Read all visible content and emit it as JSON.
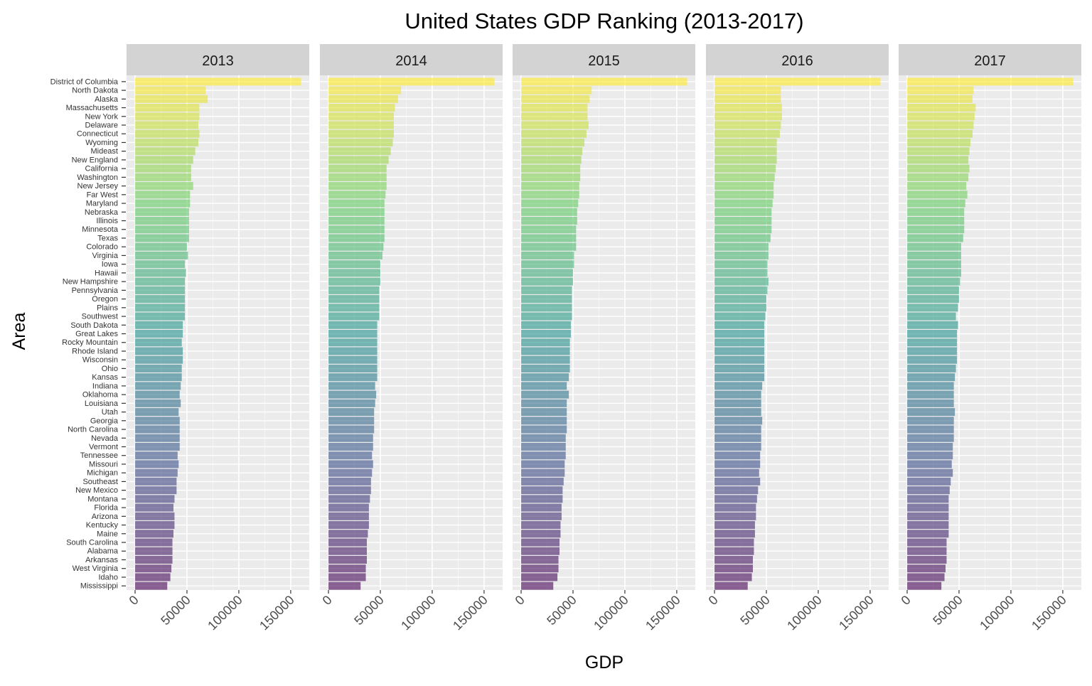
{
  "chart_data": {
    "type": "bar",
    "orientation": "horizontal",
    "title": "United States GDP Ranking (2013-2017)",
    "xlabel": "GDP",
    "ylabel": "Area",
    "xlim": [
      0,
      165000
    ],
    "x_ticks": [
      0,
      50000,
      100000,
      150000
    ],
    "x_tick_labels": [
      "0",
      "50000",
      "100000",
      "150000"
    ],
    "grid": true,
    "legend": "none",
    "color_scale": [
      "#fde725",
      "#5ec962",
      "#21918c",
      "#3b528b",
      "#440154"
    ],
    "facets": [
      "2013",
      "2014",
      "2015",
      "2016",
      "2017"
    ],
    "categories": [
      "District of Columbia",
      "North Dakota",
      "Alaska",
      "Massachusetts",
      "New York",
      "Delaware",
      "Connecticut",
      "Wyoming",
      "Mideast",
      "New England",
      "California",
      "Washington",
      "New Jersey",
      "Far West",
      "Maryland",
      "Nebraska",
      "Illinois",
      "Minnesota",
      "Texas",
      "Colorado",
      "Virginia",
      "Iowa",
      "Hawaii",
      "New Hampshire",
      "Pennsylvania",
      "Oregon",
      "Plains",
      "Southwest",
      "South Dakota",
      "Great Lakes",
      "Rocky Mountain",
      "Rhode Island",
      "Wisconsin",
      "Ohio",
      "Kansas",
      "Indiana",
      "Oklahoma",
      "Louisiana",
      "Utah",
      "Georgia",
      "North Carolina",
      "Nevada",
      "Vermont",
      "Tennessee",
      "Missouri",
      "Michigan",
      "Southeast",
      "New Mexico",
      "Montana",
      "Florida",
      "Arizona",
      "Kentucky",
      "Maine",
      "South Carolina",
      "Alabama",
      "Arkansas",
      "West Virginia",
      "Idaho",
      "Mississippi"
    ],
    "series": [
      {
        "name": "2013",
        "values": [
          160000,
          68000,
          70000,
          62000,
          62000,
          61000,
          62000,
          61000,
          58000,
          56000,
          54000,
          54000,
          56000,
          53000,
          53000,
          52000,
          52000,
          52000,
          52000,
          50000,
          51000,
          48000,
          49000,
          48000,
          48000,
          48000,
          48000,
          48000,
          46000,
          46000,
          45000,
          46000,
          46000,
          45000,
          45000,
          44000,
          43000,
          44000,
          42000,
          43000,
          43000,
          43000,
          43000,
          41000,
          42000,
          41000,
          40000,
          40000,
          38000,
          37000,
          38000,
          38000,
          37000,
          36000,
          36000,
          36000,
          35000,
          34000,
          31000
        ]
      },
      {
        "name": "2014",
        "values": [
          160000,
          70000,
          67000,
          64000,
          63000,
          63000,
          63000,
          62000,
          60000,
          58000,
          56000,
          56000,
          56000,
          55000,
          54000,
          54000,
          54000,
          54000,
          54000,
          53000,
          52000,
          50000,
          50000,
          50000,
          49000,
          49000,
          49000,
          49000,
          47000,
          47000,
          47000,
          47000,
          47000,
          47000,
          47000,
          45000,
          46000,
          45000,
          44000,
          44000,
          44000,
          43000,
          43000,
          42000,
          43000,
          42000,
          41000,
          41000,
          40000,
          39000,
          39000,
          39000,
          38000,
          37000,
          37000,
          37000,
          36000,
          36000,
          31000
        ]
      },
      {
        "name": "2015",
        "values": [
          160000,
          68000,
          66000,
          64000,
          64000,
          65000,
          63000,
          61000,
          59000,
          58000,
          57000,
          57000,
          56000,
          56000,
          55000,
          54000,
          54000,
          53000,
          53000,
          53000,
          51000,
          51000,
          50000,
          50000,
          49000,
          49000,
          49000,
          49000,
          48000,
          48000,
          47000,
          47000,
          47000,
          47000,
          46000,
          44000,
          46000,
          44000,
          44000,
          44000,
          44000,
          43000,
          43000,
          43000,
          42000,
          42000,
          41000,
          40000,
          40000,
          39000,
          39000,
          38000,
          38000,
          37000,
          37000,
          36000,
          36000,
          35000,
          31000
        ]
      },
      {
        "name": "2016",
        "values": [
          160000,
          64000,
          64000,
          65000,
          65000,
          64000,
          63000,
          60000,
          60000,
          60000,
          59000,
          58000,
          57000,
          57000,
          56000,
          55000,
          55000,
          55000,
          54000,
          52000,
          52000,
          51000,
          51000,
          52000,
          51000,
          50000,
          50000,
          49000,
          48000,
          48000,
          48000,
          48000,
          48000,
          48000,
          48000,
          46000,
          45000,
          45000,
          45000,
          46000,
          45000,
          45000,
          45000,
          44000,
          44000,
          43000,
          44000,
          42000,
          41000,
          40000,
          40000,
          39000,
          39000,
          38000,
          38000,
          37000,
          37000,
          36000,
          32000
        ]
      },
      {
        "name": "2017",
        "values": [
          160000,
          64000,
          63000,
          66000,
          65000,
          64000,
          63000,
          61000,
          60000,
          59000,
          60000,
          59000,
          57000,
          58000,
          56000,
          55000,
          55000,
          55000,
          54000,
          52000,
          52000,
          52000,
          52000,
          51000,
          50000,
          50000,
          49000,
          47000,
          49000,
          48000,
          48000,
          48000,
          48000,
          47000,
          46000,
          45000,
          45000,
          45000,
          46000,
          45000,
          45000,
          45000,
          44000,
          44000,
          43000,
          44000,
          42000,
          41000,
          40000,
          40000,
          40000,
          40000,
          40000,
          38000,
          38000,
          38000,
          37000,
          36000,
          33000
        ]
      }
    ]
  }
}
